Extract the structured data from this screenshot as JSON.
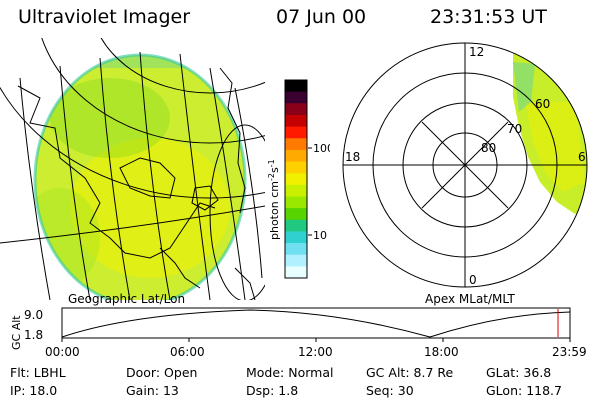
{
  "header": {
    "title": "Ultraviolet Imager",
    "date": "07 Jun 00",
    "time": "23:31:53 UT"
  },
  "colorbar": {
    "unit_label": "photon cm",
    "unit_exp1": "-2",
    "unit_mid": "s",
    "unit_exp2": "-1",
    "tick_100": "100",
    "tick_10": "10",
    "colors": [
      "#000000",
      "#3a0030",
      "#8a0018",
      "#c40000",
      "#ff1a00",
      "#ff7a00",
      "#ffaa00",
      "#ffd000",
      "#f0f000",
      "#c8f000",
      "#9ae800",
      "#58d400",
      "#20c880",
      "#30d0d0",
      "#70e0f0",
      "#b0f0ff",
      "#e8ffff"
    ]
  },
  "map_left": {
    "caption": "Geographic Lat/Lon",
    "aurora_color": "#c8ec2a"
  },
  "map_right": {
    "caption": "Apex MLat/MLT",
    "mlt_12": "12",
    "mlt_18": "18",
    "mlt_6": "6",
    "mlt_0": "0",
    "lat_80": "80",
    "lat_70": "70",
    "lat_60": "60"
  },
  "timeline": {
    "ylabel": "GC Alt",
    "tick_high": "9.0",
    "tick_low": "1.8",
    "times": [
      "00:00",
      "06:00",
      "12:00",
      "18:00",
      "23:59"
    ],
    "marker_color": "#e00000"
  },
  "status": {
    "flt_label": "Flt:",
    "flt_value": "LBHL",
    "ip_label": "IP:",
    "ip_value": "18.0",
    "door_label": "Door:",
    "door_value": "Open",
    "gain_label": "Gain:",
    "gain_value": "13",
    "mode_label": "Mode:",
    "mode_value": "Normal",
    "dsp_label": "Dsp:",
    "dsp_value": "1.8",
    "gcalt_label": "GC Alt:",
    "gcalt_value": "8.7 Re",
    "seq_label": "Seq:",
    "seq_value": "30",
    "glat_label": "GLat:",
    "glat_value": "36.8",
    "glon_label": "GLon:",
    "glon_value": "118.7"
  }
}
